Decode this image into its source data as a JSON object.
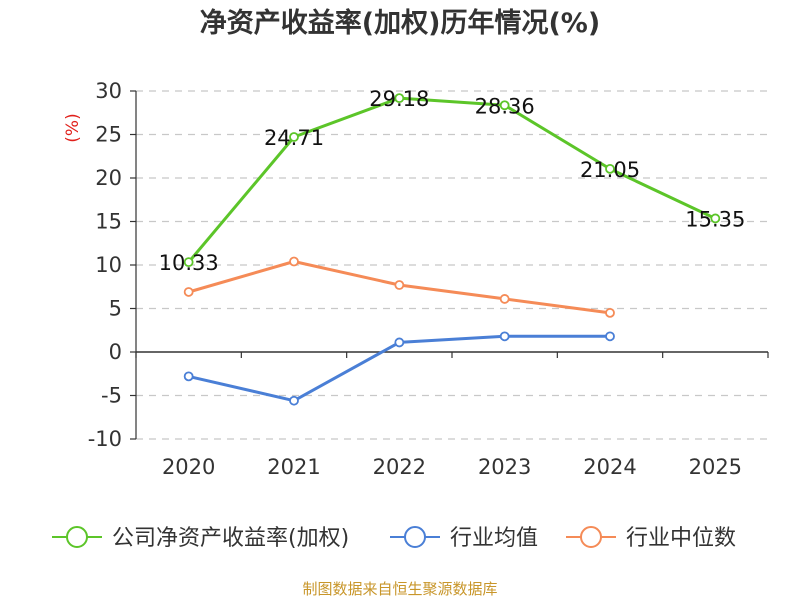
{
  "chart_data": {
    "type": "line",
    "title": "净资产收益率(加权)历年情况(%)",
    "ylabel": "(%)",
    "categories": [
      "2020",
      "2021",
      "2022",
      "2023",
      "2024",
      "2025"
    ],
    "ylim": [
      -10,
      30
    ],
    "yticks": [
      "30",
      "25",
      "20",
      "15",
      "10",
      "5",
      "0",
      "-5",
      "-10"
    ],
    "grid": true,
    "legend_position": "bottom",
    "series": [
      {
        "name": "公司净资产收益率(加权)",
        "color": "#5cc529",
        "values": [
          10.33,
          24.71,
          29.18,
          28.36,
          21.05,
          15.35
        ],
        "labels": [
          "10.33",
          "24.71",
          "29.18",
          "28.36",
          "21.05",
          "15.35"
        ]
      },
      {
        "name": "行业均值",
        "color": "#4a7fd6",
        "values": [
          -2.8,
          -5.6,
          1.1,
          1.8,
          1.8,
          null
        ]
      },
      {
        "name": "行业中位数",
        "color": "#f58b57",
        "values": [
          6.9,
          10.4,
          7.7,
          6.1,
          4.5,
          null
        ]
      }
    ]
  },
  "source_text": "制图数据来自恒生聚源数据库"
}
